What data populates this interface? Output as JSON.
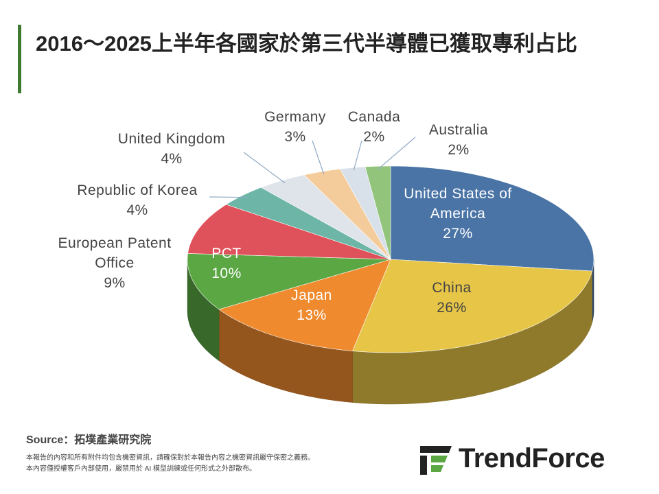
{
  "chart_data": {
    "type": "pie3d",
    "title": "2016～2025上半年各國家於第三代半導體已獲取專利占比",
    "categories": [
      "United States of America",
      "China",
      "Japan",
      "PCT",
      "European Patent Office",
      "Republic of Korea",
      "United Kingdom",
      "Germany",
      "Canada",
      "Australia"
    ],
    "values": [
      27,
      26,
      13,
      10,
      9,
      4,
      4,
      3,
      2,
      2
    ],
    "value_labels": [
      "27%",
      "26%",
      "13%",
      "10%",
      "9%",
      "4%",
      "4%",
      "3%",
      "2%",
      "2%"
    ],
    "colors": [
      "#4a74a6",
      "#e6c547",
      "#ef8a2e",
      "#5aa744",
      "#e0525b",
      "#6db6a7",
      "#dfe4ea",
      "#f4cc9c",
      "#d8e0ea",
      "#92c47c"
    ],
    "source": "Source：拓墣產業研究院",
    "notes": [
      "本報告的內容和所有附件均包含機密資訊，請確保對於本報告內容之機密資訊嚴守保密之義務。",
      "本內容僅授權客戶內部使用，嚴禁用於 AI 模型訓練或任何形式之外部散布。"
    ],
    "brand": "TrendForce"
  }
}
